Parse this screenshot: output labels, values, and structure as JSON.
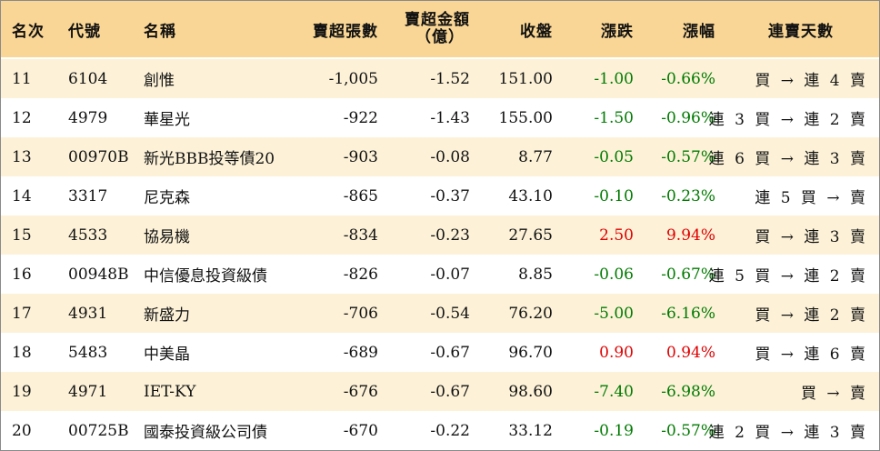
{
  "colors": {
    "header_bg": "#f9d695",
    "row_alt_bg": "#fdf2d8",
    "up": "#e00000",
    "down": "#007a00"
  },
  "headers": {
    "rank": "名次",
    "code": "代號",
    "name": "名稱",
    "net_sell_lots": "賣超張數",
    "net_sell_amount_line1": "賣超金額",
    "net_sell_amount_line2": "（億）",
    "close": "收盤",
    "change": "漲跌",
    "change_pct": "漲幅",
    "streak": "連賣天數"
  },
  "rows": [
    {
      "rank": "11",
      "code": "6104",
      "name": "創惟",
      "lots": "-1,005",
      "amount": "-1.52",
      "close": "151.00",
      "change": "-1.00",
      "pct": "-0.66%",
      "dir": "down",
      "streak": "買 → 連 4 賣"
    },
    {
      "rank": "12",
      "code": "4979",
      "name": "華星光",
      "lots": "-922",
      "amount": "-1.43",
      "close": "155.00",
      "change": "-1.50",
      "pct": "-0.96%",
      "dir": "down",
      "streak": "連 3 買 → 連 2 賣"
    },
    {
      "rank": "13",
      "code": "00970B",
      "name": "新光BBB投等債20",
      "lots": "-903",
      "amount": "-0.08",
      "close": "8.77",
      "change": "-0.05",
      "pct": "-0.57%",
      "dir": "down",
      "streak": "連 6 買 → 連 3 賣"
    },
    {
      "rank": "14",
      "code": "3317",
      "name": "尼克森",
      "lots": "-865",
      "amount": "-0.37",
      "close": "43.10",
      "change": "-0.10",
      "pct": "-0.23%",
      "dir": "down",
      "streak": "連 5 買 → 賣"
    },
    {
      "rank": "15",
      "code": "4533",
      "name": "協易機",
      "lots": "-834",
      "amount": "-0.23",
      "close": "27.65",
      "change": "2.50",
      "pct": "9.94%",
      "dir": "up",
      "streak": "買 → 連 3 賣"
    },
    {
      "rank": "16",
      "code": "00948B",
      "name": "中信優息投資級債",
      "lots": "-826",
      "amount": "-0.07",
      "close": "8.85",
      "change": "-0.06",
      "pct": "-0.67%",
      "dir": "down",
      "streak": "連 5 買 → 連 2 賣"
    },
    {
      "rank": "17",
      "code": "4931",
      "name": "新盛力",
      "lots": "-706",
      "amount": "-0.54",
      "close": "76.20",
      "change": "-5.00",
      "pct": "-6.16%",
      "dir": "down",
      "streak": "買 → 連 2 賣"
    },
    {
      "rank": "18",
      "code": "5483",
      "name": "中美晶",
      "lots": "-689",
      "amount": "-0.67",
      "close": "96.70",
      "change": "0.90",
      "pct": "0.94%",
      "dir": "up",
      "streak": "買 → 連 6 賣"
    },
    {
      "rank": "19",
      "code": "4971",
      "name": "IET-KY",
      "lots": "-676",
      "amount": "-0.67",
      "close": "98.60",
      "change": "-7.40",
      "pct": "-6.98%",
      "dir": "down",
      "streak": "買 → 賣"
    },
    {
      "rank": "20",
      "code": "00725B",
      "name": "國泰投資級公司債",
      "lots": "-670",
      "amount": "-0.22",
      "close": "33.12",
      "change": "-0.19",
      "pct": "-0.57%",
      "dir": "down",
      "streak": "連 2 買 → 連 3 賣"
    }
  ]
}
